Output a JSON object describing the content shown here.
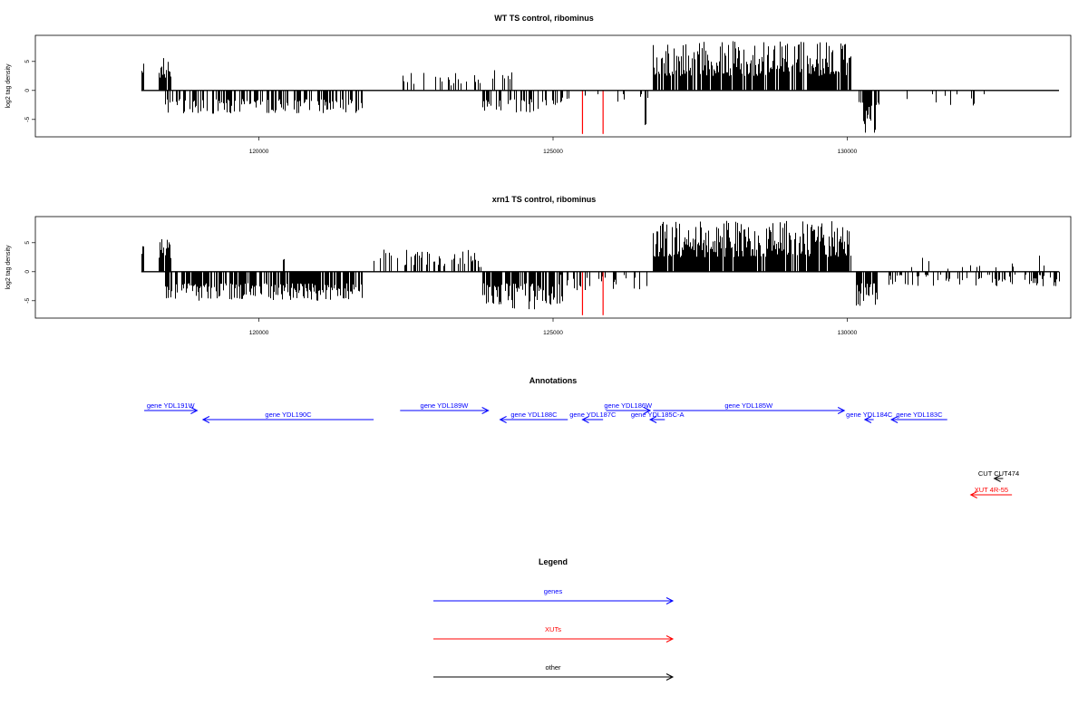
{
  "chart_data": [
    {
      "type": "bar",
      "title": "WT TS control, ribominus",
      "ylabel": "log2 tag density",
      "xlabel": "",
      "xlim": [
        116200,
        133800
      ],
      "ylim": [
        -8,
        9.5
      ],
      "xticks": [
        120000,
        125000,
        130000
      ],
      "yticks": [
        -5,
        0,
        5
      ],
      "grid": false,
      "colors": {
        "bars": "#000000",
        "markers": "#ff0000"
      },
      "markers": [
        {
          "x": 125500,
          "y": -7.5
        },
        {
          "x": 125850,
          "y": -7.5
        }
      ],
      "segments": [
        {
          "x0": 118000,
          "x1": 118030,
          "sign": 1,
          "ymin": 3.0,
          "ymax": 5.0,
          "density": 1.0,
          "seed": 11
        },
        {
          "x0": 118300,
          "x1": 118500,
          "sign": 1,
          "ymin": 2.0,
          "ymax": 5.8,
          "density": 0.8,
          "seed": 12
        },
        {
          "x0": 118400,
          "x1": 121750,
          "sign": -1,
          "ymin": 1.5,
          "ymax": 4.0,
          "density": 0.55,
          "seed": 13
        },
        {
          "x0": 122400,
          "x1": 124300,
          "sign": 1,
          "ymin": 0.8,
          "ymax": 3.5,
          "density": 0.2,
          "seed": 14
        },
        {
          "x0": 123800,
          "x1": 125200,
          "sign": -1,
          "ymin": 1.5,
          "ymax": 4.0,
          "density": 0.45,
          "seed": 15
        },
        {
          "x0": 125100,
          "x1": 126600,
          "sign": -1,
          "ymin": 0.5,
          "ymax": 2.0,
          "density": 0.12,
          "seed": 16
        },
        {
          "x0": 126550,
          "x1": 126570,
          "sign": -1,
          "ymin": 5.8,
          "ymax": 6.0,
          "density": 1.0,
          "seed": 17
        },
        {
          "x0": 126700,
          "x1": 130050,
          "sign": 1,
          "ymin": 2.5,
          "ymax": 8.5,
          "density": 0.85,
          "seed": 18
        },
        {
          "x0": 130200,
          "x1": 130550,
          "sign": -1,
          "ymin": 2.0,
          "ymax": 7.5,
          "density": 0.8,
          "seed": 19
        },
        {
          "x0": 131000,
          "x1": 132800,
          "sign": -1,
          "ymin": 0.5,
          "ymax": 2.8,
          "density": 0.1,
          "seed": 20
        }
      ]
    },
    {
      "type": "bar",
      "title": "xrn1 TS control, ribominus",
      "ylabel": "log2 tag density",
      "xlabel": "",
      "xlim": [
        116200,
        133800
      ],
      "ylim": [
        -8,
        9.5
      ],
      "xticks": [
        120000,
        125000,
        130000
      ],
      "yticks": [
        -5,
        0,
        5
      ],
      "grid": false,
      "colors": {
        "bars": "#000000",
        "markers": "#ff0000"
      },
      "markers": [
        {
          "x": 125500,
          "y": -7.5
        },
        {
          "x": 125850,
          "y": -7.5
        }
      ],
      "segments": [
        {
          "x0": 118000,
          "x1": 118030,
          "sign": 1,
          "ymin": 3.0,
          "ymax": 4.8,
          "density": 1.0,
          "seed": 31
        },
        {
          "x0": 118300,
          "x1": 118500,
          "sign": 1,
          "ymin": 2.0,
          "ymax": 5.8,
          "density": 0.8,
          "seed": 32
        },
        {
          "x0": 118400,
          "x1": 121750,
          "sign": -1,
          "ymin": 2.0,
          "ymax": 5.0,
          "density": 0.75,
          "seed": 33
        },
        {
          "x0": 120400,
          "x1": 120420,
          "sign": 1,
          "ymin": 2.0,
          "ymax": 2.2,
          "density": 1.0,
          "seed": 34
        },
        {
          "x0": 121950,
          "x1": 123800,
          "sign": 1,
          "ymin": 0.8,
          "ymax": 3.8,
          "density": 0.4,
          "seed": 35
        },
        {
          "x0": 123800,
          "x1": 125150,
          "sign": -1,
          "ymin": 2.0,
          "ymax": 6.5,
          "density": 0.65,
          "seed": 36
        },
        {
          "x0": 125100,
          "x1": 126600,
          "sign": -1,
          "ymin": 0.5,
          "ymax": 3.2,
          "density": 0.25,
          "seed": 37
        },
        {
          "x0": 126700,
          "x1": 130050,
          "sign": 1,
          "ymin": 2.5,
          "ymax": 8.8,
          "density": 0.9,
          "seed": 38
        },
        {
          "x0": 130150,
          "x1": 130500,
          "sign": -1,
          "ymin": 2.0,
          "ymax": 7.0,
          "density": 0.8,
          "seed": 39
        },
        {
          "x0": 130700,
          "x1": 133600,
          "sign": -1,
          "ymin": 0.5,
          "ymax": 2.5,
          "density": 0.35,
          "seed": 40
        },
        {
          "x0": 131000,
          "x1": 133400,
          "sign": 1,
          "ymin": 0.5,
          "ymax": 2.8,
          "density": 0.08,
          "seed": 41
        }
      ]
    }
  ],
  "annotations": {
    "title": "Annotations",
    "features": [
      {
        "label": "gene YDL191W",
        "class": "gene",
        "strand": "+",
        "start": 118050,
        "end": 118950,
        "row": 0
      },
      {
        "label": "gene YDL190C",
        "class": "gene",
        "strand": "-",
        "start": 119050,
        "end": 121950,
        "row": 1
      },
      {
        "label": "gene YDL189W",
        "class": "gene",
        "strand": "+",
        "start": 122400,
        "end": 123900,
        "row": 0
      },
      {
        "label": "gene YDL188C",
        "class": "gene",
        "strand": "-",
        "start": 124100,
        "end": 125250,
        "row": 1
      },
      {
        "label": "gene YDL187C",
        "class": "gene",
        "strand": "-",
        "start": 125500,
        "end": 125850,
        "row": 1
      },
      {
        "label": "gene YDL186W",
        "class": "gene",
        "strand": "+",
        "start": 125900,
        "end": 126650,
        "row": 0
      },
      {
        "label": "gene YDL185C-A",
        "class": "gene",
        "strand": "-",
        "start": 126650,
        "end": 126900,
        "row": 1
      },
      {
        "label": "gene YDL185W",
        "class": "gene",
        "strand": "+",
        "start": 126700,
        "end": 129950,
        "row": 0
      },
      {
        "label": "gene YDL184C",
        "class": "gene",
        "strand": "-",
        "start": 130300,
        "end": 130450,
        "row": 1
      },
      {
        "label": "gene YDL183C",
        "class": "gene",
        "strand": "-",
        "start": 130750,
        "end": 131700,
        "row": 1
      },
      {
        "label": "CUT CUT474",
        "class": "other",
        "strand": "-",
        "start": 132500,
        "end": 132650,
        "row": 2
      },
      {
        "label": "XUT 4R-55",
        "class": "xut",
        "strand": "-",
        "start": 132100,
        "end": 132800,
        "row": 3
      }
    ]
  },
  "legend": {
    "title": "Legend",
    "items": [
      {
        "label": "genes",
        "class": "gene"
      },
      {
        "label": "XUTs",
        "class": "xut"
      },
      {
        "label": "other",
        "class": "other"
      }
    ]
  },
  "colors": {
    "gene": "#0000ff",
    "xut": "#ff0000",
    "other": "#000000"
  }
}
